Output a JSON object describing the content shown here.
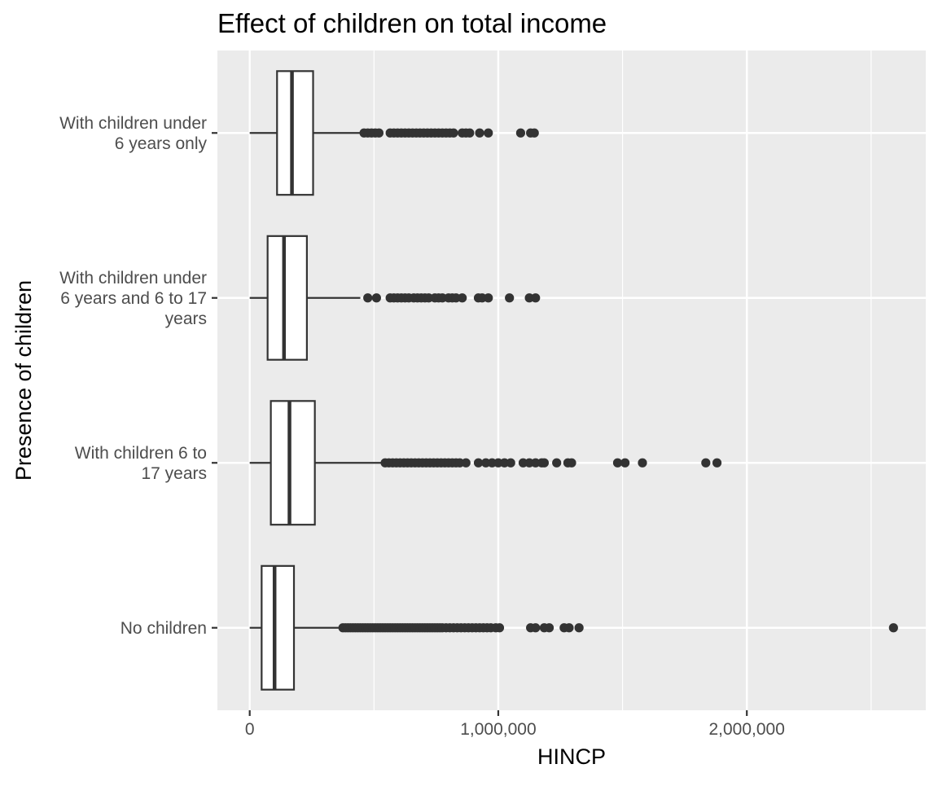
{
  "chart_data": {
    "type": "boxplot",
    "orientation": "horizontal",
    "title": "Effect of children on total income",
    "xlabel": "HINCP",
    "ylabel": "Presence of children",
    "xlim": [
      -130000,
      2720000
    ],
    "x_ticks": [
      0,
      1000000,
      2000000
    ],
    "x_tick_labels": [
      "0",
      "1,000,000",
      "2,000,000"
    ],
    "x_minor_ticks": [
      500000,
      1500000,
      2500000
    ],
    "grid": true,
    "legend": "none",
    "colors": {
      "panel": "#ebebeb",
      "grid": "#ffffff",
      "box_fill": "#ffffff",
      "stroke": "#333333",
      "outlier": "#333333",
      "axis_text": "#4d4d4d",
      "title_text": "#000000"
    },
    "categories": [
      {
        "label_lines": [
          "With children under",
          "6 years only"
        ],
        "whisker_low": 0,
        "q1": 110000,
        "median": 170000,
        "q3": 255000,
        "whisker_high": 445000,
        "outliers": [
          460000,
          475000,
          490000,
          505000,
          520000,
          565000,
          580000,
          595000,
          610000,
          625000,
          640000,
          655000,
          670000,
          685000,
          700000,
          715000,
          730000,
          745000,
          760000,
          775000,
          790000,
          805000,
          820000,
          855000,
          870000,
          885000,
          925000,
          960000,
          1090000,
          1130000,
          1145000
        ]
      },
      {
        "label_lines": [
          "With children under",
          "6 years and 6 to 17",
          "years"
        ],
        "whisker_low": 0,
        "q1": 72000,
        "median": 138000,
        "q3": 230000,
        "whisker_high": 445000,
        "outliers": [
          475000,
          510000,
          565000,
          580000,
          595000,
          610000,
          625000,
          640000,
          660000,
          675000,
          690000,
          705000,
          720000,
          745000,
          760000,
          775000,
          800000,
          815000,
          830000,
          855000,
          920000,
          935000,
          960000,
          1045000,
          1125000,
          1150000
        ]
      },
      {
        "label_lines": [
          "With children 6 to",
          "17 years"
        ],
        "whisker_low": 0,
        "q1": 85000,
        "median": 160000,
        "q3": 262000,
        "whisker_high": 530000,
        "outliers": [
          545000,
          560000,
          575000,
          590000,
          605000,
          620000,
          635000,
          650000,
          665000,
          680000,
          695000,
          710000,
          725000,
          740000,
          755000,
          770000,
          785000,
          800000,
          815000,
          830000,
          845000,
          870000,
          920000,
          950000,
          975000,
          1000000,
          1025000,
          1050000,
          1100000,
          1125000,
          1150000,
          1175000,
          1185000,
          1235000,
          1280000,
          1295000,
          1480000,
          1510000,
          1580000,
          1835000,
          1880000
        ]
      },
      {
        "label_lines": [
          "No children"
        ],
        "whisker_low": 0,
        "q1": 48000,
        "median": 100000,
        "q3": 178000,
        "whisker_high": 365000,
        "outliers": [
          375000,
          385000,
          395000,
          405000,
          415000,
          425000,
          435000,
          445000,
          455000,
          465000,
          475000,
          485000,
          495000,
          505000,
          515000,
          525000,
          535000,
          545000,
          555000,
          565000,
          575000,
          585000,
          595000,
          605000,
          615000,
          625000,
          635000,
          645000,
          655000,
          665000,
          675000,
          685000,
          695000,
          705000,
          715000,
          725000,
          735000,
          745000,
          755000,
          765000,
          775000,
          790000,
          805000,
          820000,
          835000,
          850000,
          865000,
          880000,
          895000,
          910000,
          925000,
          940000,
          955000,
          970000,
          990000,
          1005000,
          1130000,
          1150000,
          1185000,
          1205000,
          1265000,
          1285000,
          1325000,
          2590000
        ]
      }
    ]
  }
}
